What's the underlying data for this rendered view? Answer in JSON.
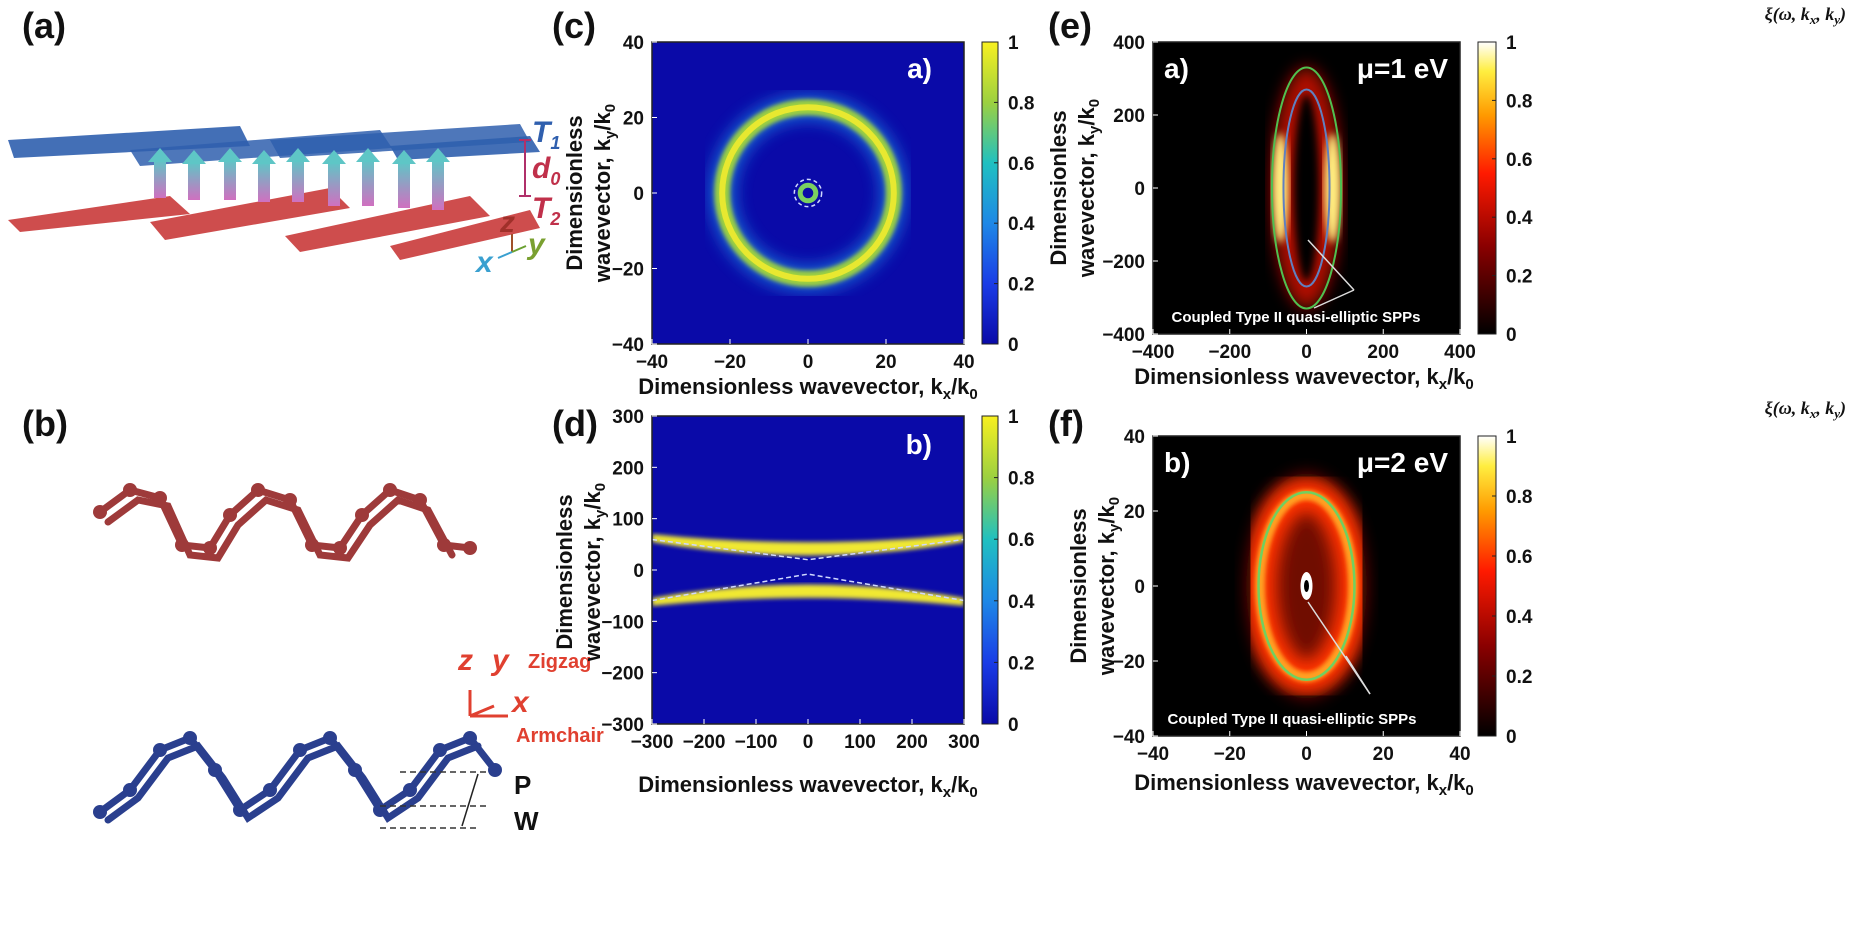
{
  "panel_labels": {
    "a": "(a)",
    "b": "(b)",
    "c": "(c)",
    "d": "(d)",
    "e": "(e)",
    "f": "(f)"
  },
  "structure_a": {
    "t1": "T",
    "t1_sub": "1",
    "t2": "T",
    "t2_sub": "2",
    "d0": "d",
    "d0_sub": "0",
    "ax_x": "x",
    "ax_y": "y",
    "ax_z": "z"
  },
  "structure_b": {
    "ax_x": "x",
    "ax_y": "y",
    "ax_z": "z",
    "zigzag": "Zigzag",
    "armchair": "Armchair",
    "p": "P",
    "w": "W"
  },
  "colors": {
    "blue_atoms": "#2f5fae",
    "red_atoms": "#c93a3a",
    "arrow_cyan": "#5ec6c6",
    "arrow_pink": "#d070c0",
    "maroon_atoms": "#9e3a3a",
    "navy_atoms": "#2a3f8e"
  },
  "chart_data": [
    {
      "id": "c",
      "type": "heatmap",
      "colormap": "parula",
      "inset_label": "a)",
      "xlabel": "Dimensionless wavevector, k",
      "xlabel_sub": "x",
      "xlabel_tail": "/k",
      "xlabel_tail_sub": "0",
      "ylabel_line1": "Dimensionless",
      "ylabel_line2": "wavevector, k",
      "ylabel_sub": "y",
      "ylabel_tail": "/k",
      "ylabel_tail_sub": "0",
      "xlim": [
        -40,
        40
      ],
      "ylim": [
        -40,
        40
      ],
      "xticks": [
        "−40",
        "−20",
        "0",
        "20",
        "40"
      ],
      "yticks": [
        "40",
        "20",
        "0",
        "−20",
        "−40"
      ],
      "colorbar_ticks": [
        "1",
        "0.8",
        "0.6",
        "0.4",
        "0.2",
        "0"
      ],
      "features": {
        "outer_ring_radius": 22,
        "inner_ring_radius": 2,
        "dashed_circle_radius": 3.5
      }
    },
    {
      "id": "d",
      "type": "heatmap",
      "colormap": "parula",
      "inset_label": "b)",
      "xlabel": "Dimensionless wavevector, k",
      "xlabel_sub": "x",
      "xlabel_tail": "/k",
      "xlabel_tail_sub": "0",
      "ylabel_line1": "Dimensionless",
      "ylabel_line2": "wavevector, k",
      "ylabel_sub": "y",
      "ylabel_tail": "/k",
      "ylabel_tail_sub": "0",
      "xlim": [
        -300,
        300
      ],
      "ylim": [
        -300,
        300
      ],
      "xticks": [
        "−300",
        "−200",
        "−100",
        "0",
        "100",
        "200",
        "300"
      ],
      "yticks": [
        "300",
        "200",
        "100",
        "0",
        "−100",
        "−200",
        "−300"
      ],
      "colorbar_ticks": [
        "1",
        "0.8",
        "0.6",
        "0.4",
        "0.2",
        "0"
      ],
      "features": {
        "band_edge_ky": 70,
        "band_center_ky": 20
      }
    },
    {
      "id": "e",
      "type": "heatmap",
      "colormap": "hot",
      "inset_label": "a)",
      "mu_label": "μ=1 eV",
      "note": "Coupled Type II quasi-elliptic SPPs",
      "colorbar_title": "ξ(ω, k",
      "cb_sub1": "x",
      "cb_mid": ", k",
      "cb_sub2": "y",
      "cb_end": ")",
      "xlabel": "Dimensionless wavevector, k",
      "xlabel_sub": "x",
      "xlabel_tail": "/k",
      "xlabel_tail_sub": "0",
      "ylabel_line1": "Dimensionless",
      "ylabel_line2": "wavevector, k",
      "ylabel_sub": "y",
      "ylabel_tail": "/k",
      "ylabel_tail_sub": "0",
      "xlim": [
        -400,
        400
      ],
      "ylim": [
        -400,
        400
      ],
      "xticks": [
        "−400",
        "−200",
        "0",
        "200",
        "400"
      ],
      "yticks": [
        "400",
        "200",
        "0",
        "−200",
        "−400"
      ],
      "colorbar_ticks": [
        "1",
        "0.8",
        "0.6",
        "0.4",
        "0.2",
        "0"
      ],
      "features": {
        "green_ellipse": [
          90,
          330
        ],
        "blue_ellipse": [
          60,
          270
        ]
      }
    },
    {
      "id": "f",
      "type": "heatmap",
      "colormap": "hot",
      "inset_label": "b)",
      "mu_label": "μ=2 eV",
      "note": "Coupled Type II quasi-elliptic SPPs",
      "colorbar_title": "ξ(ω, k",
      "cb_sub1": "x",
      "cb_mid": ", k",
      "cb_sub2": "y",
      "cb_end": ")",
      "xlabel": "Dimensionless wavevector, k",
      "xlabel_sub": "x",
      "xlabel_tail": "/k",
      "xlabel_tail_sub": "0",
      "ylabel_line1": "Dimensionless",
      "ylabel_line2": "wavevector, k",
      "ylabel_sub": "y",
      "ylabel_tail": "/k",
      "ylabel_tail_sub": "0",
      "xlim": [
        -40,
        40
      ],
      "ylim": [
        -40,
        40
      ],
      "xticks": [
        "−40",
        "−20",
        "0",
        "20",
        "40"
      ],
      "yticks": [
        "40",
        "20",
        "0",
        "−20",
        "−40"
      ],
      "colorbar_ticks": [
        "1",
        "0.8",
        "0.6",
        "0.4",
        "0.2",
        "0"
      ],
      "features": {
        "ellipse": [
          12.5,
          25
        ]
      }
    }
  ]
}
